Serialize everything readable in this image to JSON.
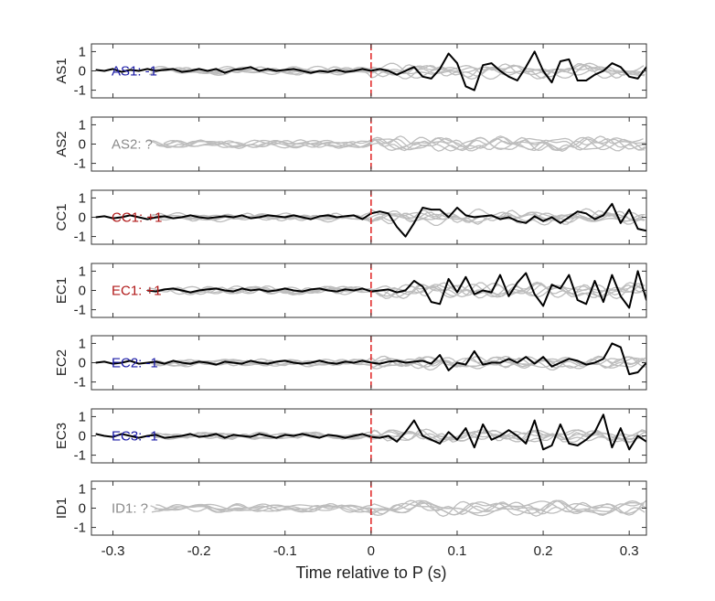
{
  "chart_data": {
    "type": "line",
    "xlabel": "Time relative to P (s)",
    "xlim": [
      -0.325,
      0.32
    ],
    "xticks": [
      -0.3,
      -0.2,
      -0.1,
      0,
      0.1,
      0.2,
      0.3
    ],
    "xtick_labels": [
      "-0.3",
      "-0.2",
      "-0.1",
      "0",
      "0.1",
      "0.2",
      "0.3"
    ],
    "ylim": [
      -1.4,
      1.4
    ],
    "yticks": [
      1,
      0,
      -1
    ],
    "ytick_labels": [
      "1",
      "0",
      "-1"
    ],
    "marker_x": 0,
    "colors": {
      "trace": "#000000",
      "background": "#bdbdbd",
      "marker": "#e02020",
      "polarity_negative": "#1a1aa6",
      "polarity_positive": "#b01818",
      "polarity_unknown": "#8a8a8a"
    },
    "panels": [
      {
        "station": "AS1",
        "label": "AS1: -1",
        "polarity": "negative",
        "trace_x_start": -0.32,
        "trace_dt": 0.01,
        "trace_y": [
          0.05,
          0.0,
          0.1,
          -0.05,
          0.05,
          0.0,
          0.1,
          0.0,
          0.05,
          0.1,
          -0.05,
          0.0,
          0.1,
          0.0,
          0.1,
          -0.1,
          0.05,
          0.1,
          0.2,
          0.0,
          0.1,
          0.0,
          0.05,
          0.1,
          0.0,
          -0.1,
          0.0,
          -0.05,
          0.05,
          -0.05,
          0.0,
          0.1,
          0.0,
          0.1,
          0.0,
          -0.2,
          0.0,
          0.2,
          -0.3,
          -0.4,
          0.1,
          0.9,
          0.4,
          -0.8,
          -1.0,
          0.3,
          0.4,
          0.0,
          -0.3,
          -0.5,
          0.2,
          1.0,
          0.0,
          -0.6,
          0.5,
          0.6,
          -0.5,
          -0.5,
          -0.2,
          0.0,
          0.4,
          0.2,
          -0.3,
          -0.4,
          0.2,
          0.0
        ]
      },
      {
        "station": "AS2",
        "label": "AS2: ?",
        "polarity": "unknown",
        "trace_x_start": null,
        "trace_dt": 0.01,
        "trace_y": []
      },
      {
        "station": "CC1",
        "label": "CC1: +1",
        "polarity": "positive",
        "trace_x_start": -0.32,
        "trace_dt": 0.01,
        "trace_y": [
          0.0,
          0.05,
          -0.05,
          0.0,
          0.1,
          0.0,
          -0.1,
          0.0,
          0.05,
          -0.05,
          0.0,
          0.1,
          0.0,
          -0.05,
          0.0,
          0.05,
          0.0,
          0.1,
          -0.05,
          0.0,
          0.1,
          0.05,
          0.0,
          0.1,
          0.0,
          -0.1,
          0.05,
          0.1,
          0.0,
          0.05,
          0.1,
          -0.1,
          0.2,
          0.3,
          0.2,
          -0.5,
          -1.0,
          -0.3,
          0.5,
          0.4,
          0.4,
          0.0,
          0.5,
          0.1,
          0.0,
          0.05,
          0.1,
          -0.1,
          0.0,
          -0.2,
          -0.3,
          0.05,
          -0.2,
          0.0,
          -0.3,
          0.0,
          0.3,
          0.2,
          -0.1,
          0.1,
          0.7,
          -0.3,
          0.4,
          -0.6,
          -0.7
        ]
      },
      {
        "station": "EC1",
        "label": "EC1: +1",
        "polarity": "positive",
        "trace_x_start": -0.26,
        "trace_dt": 0.01,
        "trace_y": [
          0.0,
          -0.05,
          0.05,
          0.1,
          0.0,
          -0.1,
          0.0,
          0.05,
          0.1,
          0.0,
          -0.05,
          0.1,
          0.0,
          0.05,
          -0.05,
          0.0,
          0.1,
          0.0,
          -0.05,
          0.05,
          0.1,
          0.0,
          -0.05,
          0.05,
          0.0,
          0.1,
          -0.05,
          0.0,
          0.05,
          -0.1,
          0.0,
          0.5,
          0.2,
          -0.6,
          -0.7,
          0.6,
          -0.1,
          0.7,
          -0.2,
          0.0,
          -0.1,
          0.8,
          -0.3,
          0.4,
          0.9,
          -0.2,
          -0.8,
          0.3,
          0.1,
          0.8,
          -0.5,
          -0.7,
          0.5,
          -0.6,
          0.8,
          -0.3,
          -0.9,
          1.0,
          -0.5,
          -0.7,
          -0.3,
          0.7
        ]
      },
      {
        "station": "EC2",
        "label": "EC2: -1",
        "polarity": "negative",
        "trace_x_start": -0.32,
        "trace_dt": 0.01,
        "trace_y": [
          0.0,
          0.05,
          -0.05,
          0.0,
          0.1,
          -0.05,
          0.0,
          0.05,
          -0.05,
          0.1,
          0.0,
          -0.05,
          0.05,
          0.0,
          -0.1,
          0.05,
          0.0,
          -0.05,
          0.1,
          0.0,
          -0.05,
          0.05,
          0.1,
          0.0,
          -0.05,
          0.0,
          0.1,
          0.0,
          -0.05,
          0.05,
          0.0,
          0.1,
          0.0,
          -0.05,
          0.05,
          0.1,
          0.0,
          0.05,
          0.1,
          -0.05,
          0.4,
          -0.4,
          0.0,
          -0.1,
          0.6,
          -0.1,
          0.0,
          0.0,
          0.2,
          0.0,
          0.3,
          -0.05,
          0.3,
          -0.2,
          0.0,
          0.2,
          0.1,
          -0.1,
          0.0,
          0.2,
          1.0,
          0.8,
          -0.6,
          -0.5,
          0.0,
          -0.6,
          0.6,
          0.3,
          0.0,
          -0.3,
          0.1
        ]
      },
      {
        "station": "EC3",
        "label": "EC3: -1",
        "polarity": "negative",
        "trace_x_start": -0.32,
        "trace_dt": 0.01,
        "trace_y": [
          0.1,
          0.0,
          -0.05,
          0.1,
          0.0,
          -0.1,
          0.0,
          0.05,
          -0.1,
          -0.05,
          0.0,
          0.1,
          -0.05,
          0.0,
          0.1,
          -0.1,
          0.05,
          0.0,
          -0.05,
          0.1,
          0.0,
          -0.1,
          0.05,
          0.0,
          0.1,
          0.0,
          -0.1,
          0.05,
          0.0,
          -0.1,
          0.0,
          0.1,
          -0.05,
          -0.1,
          0.0,
          -0.3,
          0.2,
          0.8,
          0.0,
          -0.2,
          -0.4,
          0.2,
          -0.2,
          0.4,
          -0.6,
          0.6,
          -0.2,
          0.0,
          0.3,
          0.0,
          -0.4,
          0.8,
          -0.7,
          -0.5,
          0.6,
          -0.4,
          -0.5,
          -0.2,
          0.2,
          1.1,
          -0.6,
          0.4,
          -0.7,
          0.0,
          -0.3,
          0.4,
          0.2,
          -0.5,
          0.2,
          0.5
        ]
      },
      {
        "station": "ID1",
        "label": "ID1: ?",
        "polarity": "unknown",
        "trace_x_start": null,
        "trace_dt": 0.01,
        "trace_y": []
      }
    ]
  }
}
